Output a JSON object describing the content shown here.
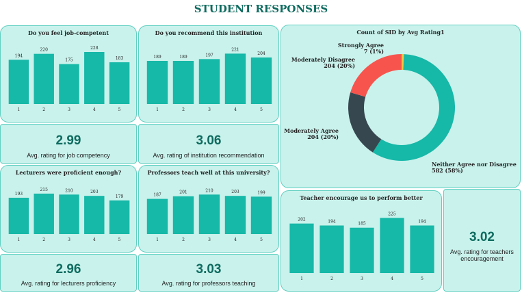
{
  "header": {
    "title": "STUDENT RESPONSES"
  },
  "colors": {
    "bar": "#16b8a8",
    "panel_bg": "#c9f2ec",
    "panel_border": "#5fcfc1",
    "kpi": "#0e6b5f",
    "donut": [
      "#16b8a8",
      "#37474f",
      "#f7544d",
      "#f5c542"
    ]
  },
  "kpis": {
    "job": {
      "value": "2.99",
      "label": "Avg. rating for job competency"
    },
    "recommend": {
      "value": "3.06",
      "label": "Avg. rating of institution recommendation"
    },
    "lecturers": {
      "value": "2.96",
      "label": "Avg. rating for lecturers proficiency"
    },
    "professors": {
      "value": "3.03",
      "label": "Avg. rating for professors teaching"
    },
    "encourage": {
      "value": "3.02",
      "label": "Avg. rating for teachers encouragement"
    }
  },
  "chart_data": [
    {
      "type": "bar",
      "title": "Do you feel job-competent",
      "categories": [
        "1",
        "2",
        "3",
        "4",
        "5"
      ],
      "values": [
        194,
        220,
        175,
        228,
        183
      ]
    },
    {
      "type": "bar",
      "title": "Do you recommend this institution",
      "categories": [
        "1",
        "2",
        "3",
        "4",
        "5"
      ],
      "values": [
        189,
        189,
        197,
        221,
        204
      ]
    },
    {
      "type": "bar",
      "title": "Lecturers were proficient enough?",
      "categories": [
        "1",
        "2",
        "3",
        "4",
        "5"
      ],
      "values": [
        193,
        215,
        210,
        203,
        179
      ]
    },
    {
      "type": "bar",
      "title": "Professors teach well at this university?",
      "categories": [
        "1",
        "2",
        "3",
        "4",
        "5"
      ],
      "values": [
        187,
        201,
        210,
        203,
        199
      ]
    },
    {
      "type": "bar",
      "title": "Teacher encourage us to perform better",
      "categories": [
        "1",
        "2",
        "3",
        "4",
        "5"
      ],
      "values": [
        202,
        194,
        185,
        225,
        194
      ]
    },
    {
      "type": "pie",
      "title": "Count of SID by Avg Rating1",
      "labels": [
        "Neither Agree nor Disagree",
        "Moderately Agree",
        "Moderately Disagree",
        "Strongly Agree"
      ],
      "values": [
        582,
        204,
        204,
        7
      ],
      "value_labels": [
        "582 (58%)",
        "204 (20%)",
        "204 (20%)",
        "7 (1%)"
      ]
    }
  ]
}
